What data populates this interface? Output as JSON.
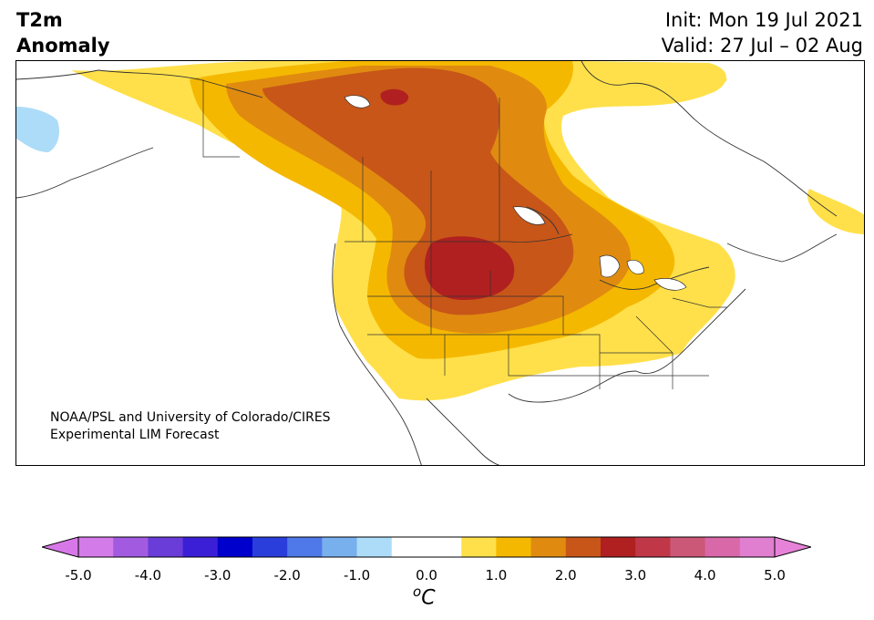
{
  "header": {
    "title_line1": "T2m",
    "title_line2": "Anomaly",
    "init": "Init: Mon 19 Jul 2021",
    "valid": "Valid: 27 Jul – 02 Aug"
  },
  "credit": {
    "line1": "NOAA/PSL and University of Colorado/CIRES",
    "line2": "Experimental LIM Forecast"
  },
  "colorbar": {
    "unit_base": "C",
    "unit_sup": "o",
    "ticks": [
      "-5.0",
      "-4.0",
      "-3.0",
      "-2.0",
      "-1.0",
      "0.0",
      "1.0",
      "2.0",
      "3.0",
      "4.0",
      "5.0"
    ],
    "range": [
      -5.0,
      5.0
    ],
    "step": 0.5,
    "colors": {
      "extend_low": "#d878e8",
      "bins": [
        "#d37be8",
        "#a25be0",
        "#6a3cd8",
        "#3b1fd6",
        "#0000cc",
        "#2a3edc",
        "#4f78e8",
        "#78b0ee",
        "#acdcf8",
        "#ffffff",
        "#ffffff",
        "#ffe04a",
        "#f5b800",
        "#e08b10",
        "#c85618",
        "#b02020",
        "#c03848",
        "#cc5878",
        "#d868a8",
        "#e07ed0"
      ],
      "extend_high": "#e682d8"
    }
  },
  "map": {
    "land_color": "#ffffff",
    "border_color": "#333333",
    "anomaly_fill_colors": {
      "0.5-1.0": "#ffe04a",
      "1.0-1.5": "#f5b800",
      "1.5-2.0": "#e08b10",
      "2.0-2.5": "#c85618",
      "2.5-3.0": "#b02020",
      "cool_-0.5--1.0": "#acdcf8"
    }
  }
}
